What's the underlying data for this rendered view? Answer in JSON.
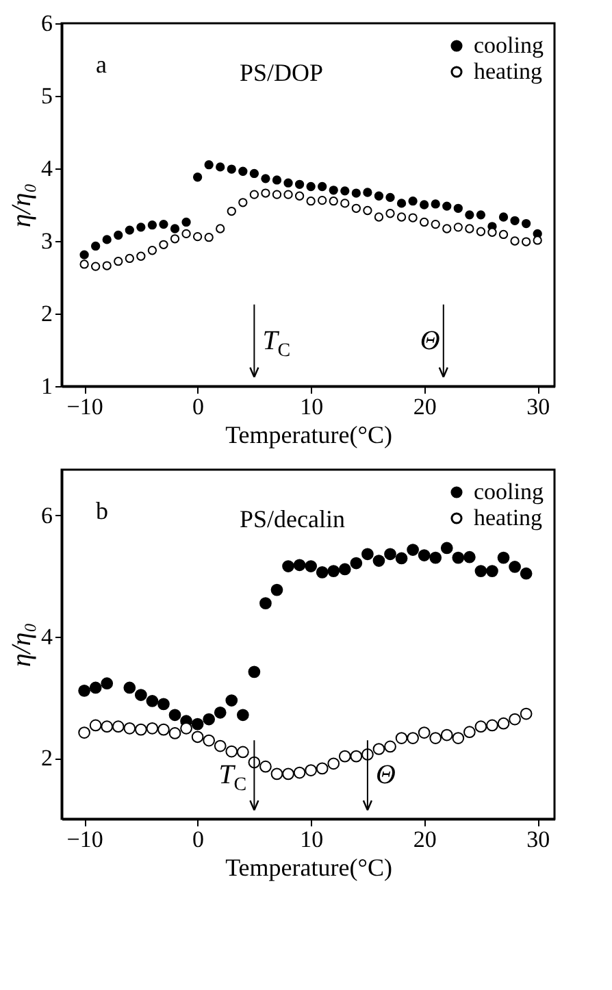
{
  "chart_data": [
    {
      "type": "scatter",
      "xlabel": "Temperature(°C)",
      "ylabel": "η/η₀",
      "xlim": [
        -12,
        31.5
      ],
      "ylim": [
        1,
        6
      ],
      "xticks": [
        -10,
        0,
        10,
        20,
        30
      ],
      "yticks": [
        1,
        2,
        3,
        4,
        5,
        6
      ],
      "marker": "circle",
      "legend": "top right",
      "annotations": [
        "a",
        "PS/DOP"
      ],
      "ref_lines": [
        {
          "axis": "x",
          "value": 5,
          "label": "T$_{C}$"
        },
        {
          "axis": "x",
          "value": 21.7,
          "label": "Θ"
        }
      ],
      "x": [
        -10,
        -9,
        -8,
        -7,
        -6,
        -5,
        -4,
        -3,
        -2,
        -1,
        0,
        1,
        2,
        3,
        4,
        5,
        6,
        7,
        8,
        9,
        10,
        11,
        12,
        13,
        14,
        15,
        16,
        17,
        18,
        19,
        20,
        21,
        22,
        23,
        24,
        25,
        26,
        27,
        28,
        29,
        30
      ],
      "series": [
        {
          "name": "cooling",
          "color": "#000000",
          "values": [
            2.81,
            2.93,
            3.02,
            3.08,
            3.15,
            3.19,
            3.22,
            3.23,
            3.17,
            3.26,
            3.88,
            4.05,
            4.02,
            3.99,
            3.96,
            3.93,
            3.86,
            3.84,
            3.8,
            3.78,
            3.75,
            3.75,
            3.7,
            3.69,
            3.66,
            3.67,
            3.62,
            3.6,
            3.52,
            3.55,
            3.5,
            3.51,
            3.48,
            3.45,
            3.36,
            3.36,
            3.2,
            3.33,
            3.28,
            3.24,
            3.1
          ]
        },
        {
          "name": "heating",
          "color": "#ffffff",
          "values": [
            2.68,
            2.65,
            2.66,
            2.72,
            2.76,
            2.79,
            2.87,
            2.95,
            3.03,
            3.1,
            3.06,
            3.05,
            3.17,
            3.41,
            3.53,
            3.64,
            3.66,
            3.64,
            3.64,
            3.62,
            3.55,
            3.56,
            3.55,
            3.52,
            3.45,
            3.42,
            3.33,
            3.38,
            3.33,
            3.32,
            3.26,
            3.23,
            3.17,
            3.19,
            3.17,
            3.13,
            3.12,
            3.09,
            3.0,
            2.99,
            3.01
          ]
        }
      ]
    },
    {
      "type": "scatter",
      "xlabel": "Temperature(°C)",
      "ylabel": "η/η₀",
      "xlim": [
        -12,
        31.5
      ],
      "ylim": [
        1,
        6.75
      ],
      "xticks": [
        -10,
        0,
        10,
        20,
        30
      ],
      "yticks": [
        2,
        4,
        6
      ],
      "marker": "circle",
      "legend": "top right",
      "annotations": [
        "b",
        "PS/decalin"
      ],
      "ref_lines": [
        {
          "axis": "x",
          "value": 5,
          "label": "T$_{C}$"
        },
        {
          "axis": "x",
          "value": 15,
          "label": "Θ"
        }
      ],
      "x": [
        -10,
        -9,
        -8,
        -7,
        -6,
        -5,
        -4,
        -3,
        -2,
        -1,
        0,
        1,
        2,
        3,
        4,
        5,
        6,
        7,
        8,
        9,
        10,
        11,
        12,
        13,
        14,
        15,
        16,
        17,
        18,
        19,
        20,
        21,
        22,
        23,
        24,
        25,
        26,
        27,
        28,
        29
      ],
      "series": [
        {
          "name": "cooling",
          "color": "#000000",
          "values": [
            3.11,
            3.16,
            3.23,
            null,
            3.16,
            3.04,
            2.94,
            2.89,
            2.71,
            2.61,
            2.56,
            2.64,
            2.75,
            2.95,
            2.71,
            3.42,
            4.55,
            4.77,
            5.16,
            5.18,
            5.16,
            5.06,
            5.08,
            5.11,
            5.21,
            5.36,
            5.25,
            5.36,
            5.29,
            5.43,
            5.34,
            5.3,
            5.46,
            5.3,
            5.31,
            5.08,
            5.08,
            5.3,
            5.15,
            5.04
          ]
        },
        {
          "name": "heating",
          "color": "#ffffff",
          "values": [
            2.42,
            2.54,
            2.52,
            2.52,
            2.49,
            2.47,
            2.49,
            2.47,
            2.41,
            2.49,
            2.35,
            2.29,
            2.2,
            2.11,
            2.1,
            1.93,
            1.86,
            1.74,
            1.74,
            1.76,
            1.8,
            1.83,
            1.91,
            2.03,
            2.03,
            2.06,
            2.15,
            2.19,
            2.33,
            2.33,
            2.42,
            2.33,
            2.38,
            2.33,
            2.43,
            2.52,
            2.54,
            2.57,
            2.64,
            2.73
          ]
        }
      ]
    }
  ]
}
